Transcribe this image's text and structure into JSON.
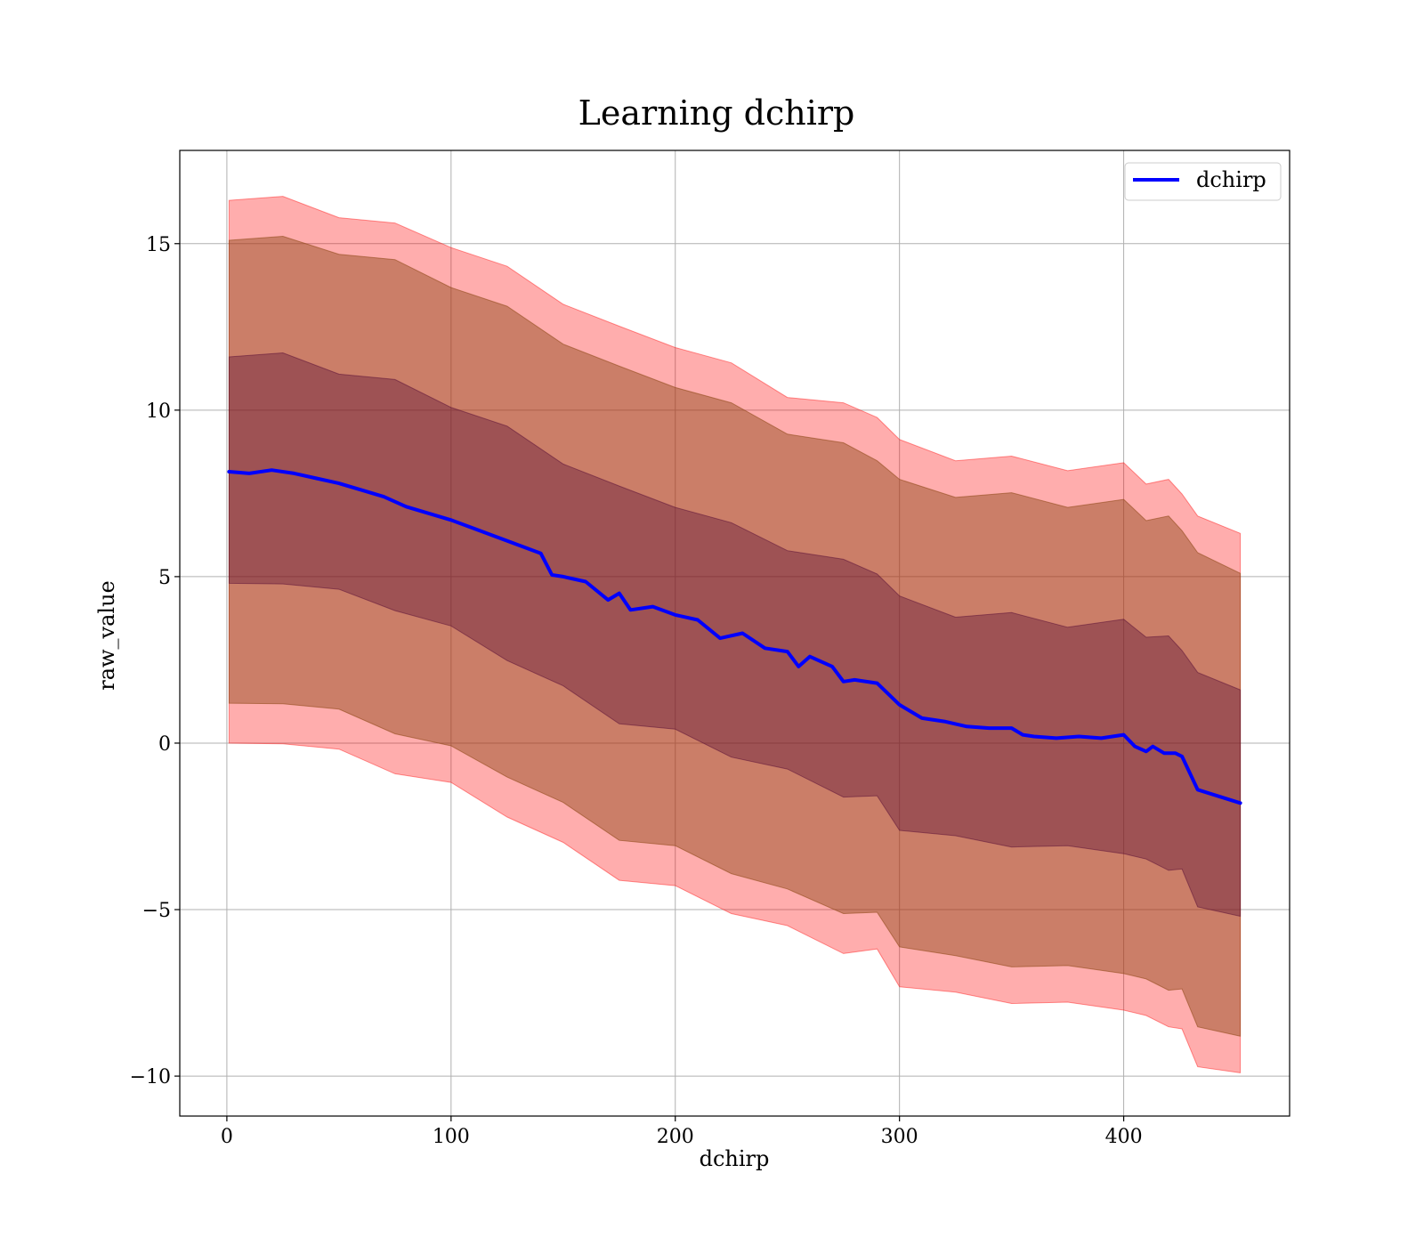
{
  "chart_data": {
    "type": "line",
    "title": "Learning dchirp",
    "xlabel": "dchirp",
    "ylabel": "raw_value",
    "xlim": [
      -21,
      474
    ],
    "ylim": [
      -11.2,
      17.8
    ],
    "xticks": [
      0,
      100,
      200,
      300,
      400
    ],
    "xtick_labels": [
      "0",
      "100",
      "200",
      "300",
      "400"
    ],
    "yticks": [
      -10,
      -5,
      0,
      5,
      10,
      15
    ],
    "ytick_labels": [
      "−10",
      "−5",
      "0",
      "5",
      "10",
      "15"
    ],
    "grid": true,
    "legend": {
      "placement": "top-right",
      "entries": [
        "dchirp"
      ]
    },
    "series": [
      {
        "name": "dchirp",
        "color": "#0000ff",
        "x": [
          1,
          10,
          20,
          30,
          40,
          50,
          60,
          70,
          80,
          90,
          100,
          110,
          120,
          130,
          140,
          145,
          150,
          160,
          170,
          175,
          180,
          190,
          200,
          210,
          220,
          230,
          240,
          250,
          255,
          260,
          270,
          275,
          280,
          290,
          300,
          310,
          320,
          330,
          340,
          350,
          355,
          360,
          370,
          380,
          390,
          400,
          405,
          410,
          413,
          418,
          423,
          426,
          433,
          452
        ],
        "values": [
          8.15,
          8.1,
          8.2,
          8.1,
          7.95,
          7.8,
          7.6,
          7.4,
          7.1,
          6.9,
          6.7,
          6.45,
          6.2,
          5.95,
          5.7,
          5.05,
          5.0,
          4.85,
          4.3,
          4.5,
          4.0,
          4.1,
          3.85,
          3.7,
          3.15,
          3.3,
          2.85,
          2.75,
          2.3,
          2.6,
          2.3,
          1.85,
          1.9,
          1.8,
          1.15,
          0.75,
          0.65,
          0.5,
          0.45,
          0.45,
          0.25,
          0.2,
          0.15,
          0.2,
          0.15,
          0.25,
          -0.1,
          -0.25,
          -0.1,
          -0.3,
          -0.3,
          -0.4,
          -1.4,
          -1.8
        ]
      }
    ],
    "bands": [
      {
        "color": "#ff0000",
        "opacity": 0.32,
        "x": [
          1,
          25,
          50,
          75,
          100,
          125,
          150,
          175,
          200,
          225,
          250,
          275,
          290,
          300,
          325,
          350,
          375,
          400,
          410,
          420,
          426,
          433,
          452
        ],
        "upper": [
          16.3,
          16.3,
          15.9,
          15.5,
          15.0,
          14.2,
          13.3,
          12.4,
          12.0,
          11.3,
          10.5,
          10.1,
          9.9,
          9.0,
          8.6,
          8.5,
          8.3,
          8.3,
          7.9,
          7.8,
          7.6,
          6.7,
          6.3
        ],
        "lower": [
          0.0,
          0.1,
          -0.3,
          -0.8,
          -1.3,
          -2.1,
          -3.1,
          -4.0,
          -4.4,
          -5.0,
          -5.6,
          -6.2,
          -6.3,
          -7.2,
          -7.6,
          -7.7,
          -7.9,
          -7.9,
          -8.3,
          -8.4,
          -8.7,
          -9.6,
          -9.9
        ]
      },
      {
        "color": "#8b4513",
        "opacity": 0.45,
        "x": [
          1,
          25,
          50,
          75,
          100,
          125,
          150,
          175,
          200,
          225,
          250,
          275,
          290,
          300,
          325,
          350,
          375,
          400,
          410,
          420,
          426,
          433,
          452
        ],
        "upper": [
          15.1,
          15.1,
          14.8,
          14.4,
          13.8,
          13.0,
          12.1,
          11.2,
          10.8,
          10.1,
          9.4,
          8.9,
          8.6,
          7.8,
          7.5,
          7.4,
          7.2,
          7.2,
          6.8,
          6.7,
          6.5,
          5.6,
          5.1
        ],
        "lower": [
          1.2,
          1.3,
          0.9,
          0.4,
          -0.2,
          -0.9,
          -1.9,
          -2.8,
          -3.2,
          -3.8,
          -4.5,
          -5.0,
          -5.2,
          -6.0,
          -6.5,
          -6.6,
          -6.8,
          -6.8,
          -7.2,
          -7.3,
          -7.5,
          -8.4,
          -8.8
        ]
      },
      {
        "color": "#4b0030",
        "opacity": 0.35,
        "x": [
          1,
          25,
          50,
          75,
          100,
          125,
          150,
          175,
          200,
          225,
          250,
          275,
          290,
          300,
          325,
          350,
          375,
          400,
          410,
          420,
          426,
          433,
          452
        ],
        "upper": [
          11.6,
          11.6,
          11.2,
          10.8,
          10.2,
          9.4,
          8.5,
          7.6,
          7.2,
          6.5,
          5.9,
          5.4,
          5.2,
          4.3,
          3.9,
          3.8,
          3.6,
          3.6,
          3.3,
          3.1,
          2.9,
          2.0,
          1.6
        ],
        "lower": [
          4.8,
          4.9,
          4.5,
          4.1,
          3.4,
          2.6,
          1.6,
          0.7,
          0.3,
          -0.3,
          -0.9,
          -1.5,
          -1.7,
          -2.5,
          -2.9,
          -3.0,
          -3.2,
          -3.2,
          -3.6,
          -3.7,
          -3.9,
          -4.8,
          -5.2
        ]
      }
    ]
  }
}
